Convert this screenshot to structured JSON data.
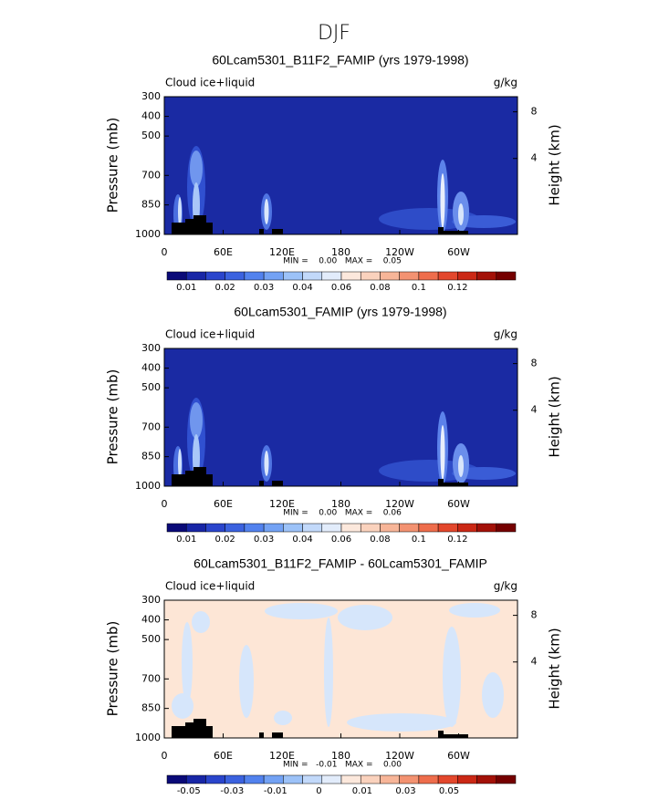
{
  "title": "DJF",
  "chart_data": [
    {
      "type": "contour",
      "title": "60Lcam5301_B11F2_FAMIP (yrs 1979-1998)",
      "left_label": "Cloud ice+liquid",
      "right_label": "g/kg",
      "ylabel": "Pressure (mb)",
      "y2label": "Height (km)",
      "ylim": [
        1000,
        300
      ],
      "yticks": [
        300,
        400,
        500,
        700,
        850,
        1000
      ],
      "y2ticks": [
        8,
        4
      ],
      "xlim": [
        0,
        360
      ],
      "xticks": [
        0,
        {
          "value": 60,
          "label": "60E"
        },
        {
          "value": 120,
          "label": "120E"
        },
        180,
        {
          "value": 240,
          "label": "120W"
        },
        {
          "value": 300,
          "label": "60W"
        }
      ],
      "stats": "MIN =    0.00   MAX =    0.05",
      "background": "#1a2aa3",
      "colorbar": {
        "colors": [
          "#0a0a78",
          "#1826a6",
          "#2a45cc",
          "#3b62df",
          "#5282ee",
          "#73a2f4",
          "#9cc2f8",
          "#c2d9fa",
          "#e2ecfb",
          "#fce8dc",
          "#fad2bd",
          "#f7b598",
          "#f39271",
          "#ee6d4c",
          "#e3472c",
          "#cb2815",
          "#a31108",
          "#750000"
        ],
        "labels": [
          0.01,
          0.02,
          0.03,
          0.04,
          0.06,
          0.08,
          0.1,
          0.12
        ]
      }
    },
    {
      "type": "contour",
      "title": "60Lcam5301_FAMIP (yrs 1979-1998)",
      "left_label": "Cloud ice+liquid",
      "right_label": "g/kg",
      "ylabel": "Pressure (mb)",
      "y2label": "Height (km)",
      "ylim": [
        1000,
        300
      ],
      "yticks": [
        300,
        400,
        500,
        700,
        850,
        1000
      ],
      "y2ticks": [
        8,
        4
      ],
      "xlim": [
        0,
        360
      ],
      "xticks": [
        0,
        {
          "value": 60,
          "label": "60E"
        },
        {
          "value": 120,
          "label": "120E"
        },
        180,
        {
          "value": 240,
          "label": "120W"
        },
        {
          "value": 300,
          "label": "60W"
        }
      ],
      "stats": "MIN =    0.00   MAX =    0.06",
      "background": "#1a2aa3",
      "colorbar": {
        "colors": [
          "#0a0a78",
          "#1826a6",
          "#2a45cc",
          "#3b62df",
          "#5282ee",
          "#73a2f4",
          "#9cc2f8",
          "#c2d9fa",
          "#e2ecfb",
          "#fce8dc",
          "#fad2bd",
          "#f7b598",
          "#f39271",
          "#ee6d4c",
          "#e3472c",
          "#cb2815",
          "#a31108",
          "#750000"
        ],
        "labels": [
          0.01,
          0.02,
          0.03,
          0.04,
          0.06,
          0.08,
          0.1,
          0.12
        ]
      }
    },
    {
      "type": "contour",
      "title": "60Lcam5301_B11F2_FAMIP - 60Lcam5301_FAMIP",
      "left_label": "Cloud ice+liquid",
      "right_label": "g/kg",
      "ylabel": "Pressure (mb)",
      "y2label": "Height (km)",
      "ylim": [
        1000,
        300
      ],
      "yticks": [
        300,
        400,
        500,
        700,
        850,
        1000
      ],
      "y2ticks": [
        8,
        4
      ],
      "xlim": [
        0,
        360
      ],
      "xticks": [
        0,
        {
          "value": 60,
          "label": "60E"
        },
        {
          "value": 120,
          "label": "120E"
        },
        180,
        {
          "value": 240,
          "label": "120W"
        },
        {
          "value": 300,
          "label": "60W"
        }
      ],
      "stats": "MIN =   -0.01   MAX =    0.00",
      "background": "#fde6d6",
      "colorbar": {
        "colors": [
          "#0a0a78",
          "#1826a6",
          "#2a45cc",
          "#3b62df",
          "#5282ee",
          "#73a2f4",
          "#9cc2f8",
          "#c2d9fa",
          "#e2ecfb",
          "#fce8dc",
          "#fad2bd",
          "#f7b598",
          "#f39271",
          "#ee6d4c",
          "#e3472c",
          "#cb2815",
          "#a31108",
          "#750000"
        ],
        "labels": [
          -0.05,
          -0.03,
          -0.01,
          0,
          0.01,
          0.03,
          0.05
        ]
      }
    }
  ]
}
